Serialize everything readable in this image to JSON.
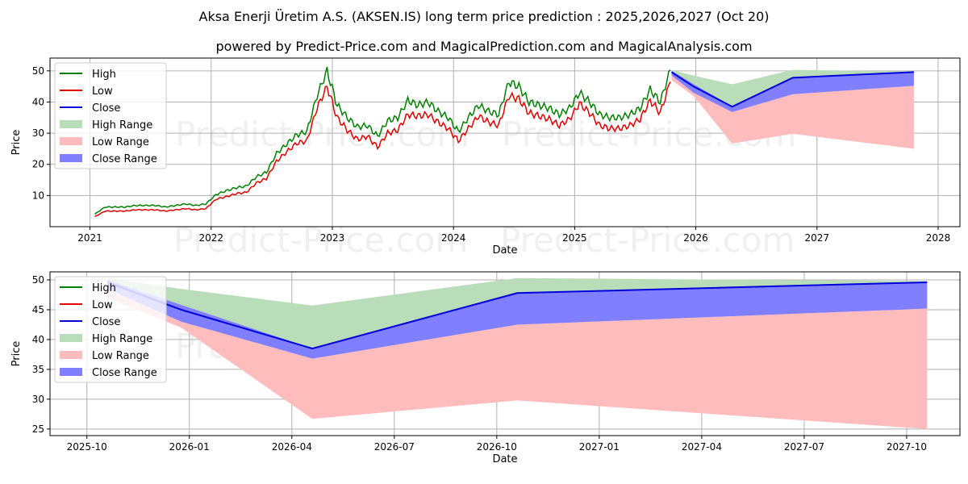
{
  "title": "Aksa Enerji Üretim A.S. (AKSEN.IS) long term price prediction : 2025,2026,2027 (Oct 20)",
  "subtitle": "powered by Predict-Price.com and MagicalPrediction.com and MagicalAnalysis.com",
  "watermark": "Predict-Price.com",
  "colors": {
    "high": "#008000",
    "low": "#e00000",
    "close": "#0000dd",
    "high_range": "#b9dcb9",
    "low_range": "#ffbcbc",
    "close_range": "#7f7fff"
  },
  "legend": [
    "High",
    "Low",
    "Close",
    "High Range",
    "Low Range",
    "Close Range"
  ],
  "chart_data": [
    {
      "type": "line",
      "xlabel": "Date",
      "ylabel": "Price",
      "xlim": [
        2020.67,
        2028.18
      ],
      "ylim": [
        0,
        54.1
      ],
      "xticks": [
        {
          "v": 2021,
          "label": "2021"
        },
        {
          "v": 2022,
          "label": "2022"
        },
        {
          "v": 2023,
          "label": "2023"
        },
        {
          "v": 2024,
          "label": "2024"
        },
        {
          "v": 2025,
          "label": "2025"
        },
        {
          "v": 2026,
          "label": "2026"
        },
        {
          "v": 2027,
          "label": "2027"
        },
        {
          "v": 2028,
          "label": "2028"
        }
      ],
      "yticks": [
        {
          "v": 10,
          "label": "10"
        },
        {
          "v": 20,
          "label": "20"
        },
        {
          "v": 30,
          "label": "30"
        },
        {
          "v": 40,
          "label": "40"
        },
        {
          "v": 50,
          "label": "50"
        }
      ],
      "history": {
        "start": 2021.0,
        "step_months": 1,
        "high": [
          4,
          6.3,
          6.3,
          6.3,
          6.8,
          6.8,
          6.8,
          6.3,
          6.8,
          7.3,
          6.8,
          7.3,
          10.3,
          11.5,
          12.5,
          13,
          16,
          17.5,
          23.5,
          26.5,
          29.5,
          30.5,
          42,
          50,
          39,
          35,
          32,
          32.5,
          29,
          34,
          35,
          40.5,
          39,
          40,
          37,
          35,
          30.5,
          35,
          39,
          37,
          36,
          46.5,
          45,
          40,
          39,
          38,
          36,
          38,
          43,
          40,
          36,
          35,
          35,
          36,
          38,
          44,
          40,
          50.3
        ],
        "low": [
          3.2,
          5,
          5,
          5,
          5.4,
          5.4,
          5.4,
          5,
          5.4,
          5.8,
          5.4,
          5.8,
          8.8,
          9.6,
          10.6,
          11,
          14,
          15.5,
          21,
          24,
          26.8,
          27.5,
          38,
          45,
          35,
          31,
          28,
          29,
          25.5,
          30,
          31,
          36,
          35.5,
          36,
          33.5,
          31.5,
          27.5,
          31.5,
          35.5,
          33.5,
          32.5,
          42,
          41,
          36.5,
          35.5,
          34.5,
          32.5,
          34.5,
          39.5,
          36.5,
          32.5,
          31.5,
          31.5,
          32.5,
          34.5,
          40.5,
          36.5,
          46.5
        ]
      },
      "forecast": {
        "dates": [
          "2025-10-20",
          "2025-12-25",
          "2026-04-20",
          "2026-10-20",
          "2027-10-20"
        ],
        "x": [
          2025.8,
          2025.98,
          2026.3,
          2026.8,
          2027.8
        ],
        "close": [
          49.6,
          45.0,
          38.5,
          47.8,
          49.6
        ],
        "high_range": [
          [
            49.6,
            50.3
          ],
          [
            45.0,
            48.5
          ],
          [
            38.5,
            45.7
          ],
          [
            47.8,
            50.3
          ],
          [
            49.6,
            49.8
          ]
        ],
        "low_range": [
          [
            47.0,
            48.5
          ],
          [
            42.0,
            43.0
          ],
          [
            26.7,
            36.8
          ],
          [
            29.8,
            42.5
          ],
          [
            25.0,
            45.2
          ]
        ],
        "close_range": [
          [
            48.5,
            50.0
          ],
          [
            43.0,
            45.8
          ],
          [
            36.8,
            38.5
          ],
          [
            42.5,
            47.8
          ],
          [
            45.2,
            49.6
          ]
        ]
      }
    },
    {
      "type": "area",
      "xlabel": "Date",
      "ylabel": "Price",
      "xlim": [
        2025.66,
        2027.88
      ],
      "ylim": [
        23.9,
        51.35
      ],
      "xticks": [
        {
          "v": 2025.75,
          "label": "2025-10"
        },
        {
          "v": 2026.0,
          "label": "2026-01"
        },
        {
          "v": 2026.25,
          "label": "2026-04"
        },
        {
          "v": 2026.5,
          "label": "2026-07"
        },
        {
          "v": 2026.75,
          "label": "2026-10"
        },
        {
          "v": 2027.0,
          "label": "2027-01"
        },
        {
          "v": 2027.25,
          "label": "2027-04"
        },
        {
          "v": 2027.5,
          "label": "2027-07"
        },
        {
          "v": 2027.75,
          "label": "2027-10"
        }
      ],
      "yticks": [
        {
          "v": 25,
          "label": "25"
        },
        {
          "v": 30,
          "label": "30"
        },
        {
          "v": 35,
          "label": "35"
        },
        {
          "v": 40,
          "label": "40"
        },
        {
          "v": 45,
          "label": "45"
        },
        {
          "v": 50,
          "label": "50"
        }
      ]
    }
  ]
}
